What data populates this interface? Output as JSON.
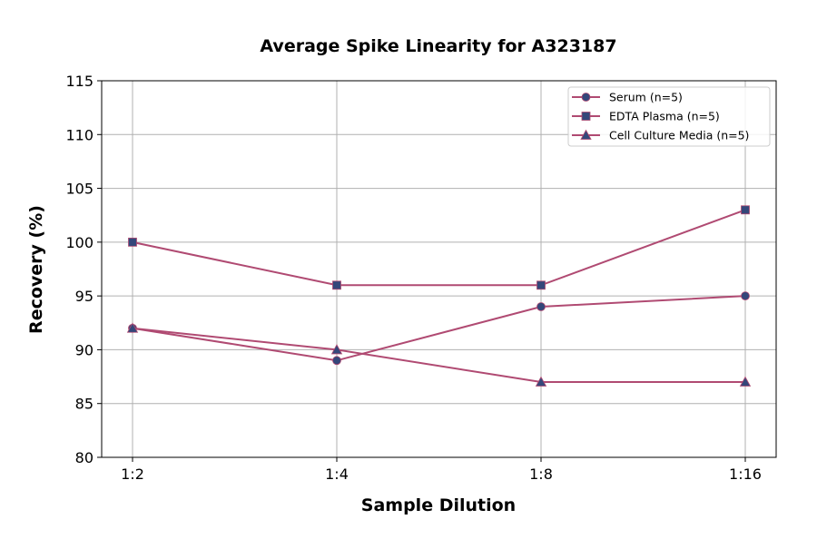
{
  "chart_data": {
    "type": "line",
    "title": "Average Spike Linearity for A323187",
    "xlabel": "Sample Dilution",
    "ylabel": "Recovery (%)",
    "categories": [
      "1:2",
      "1:4",
      "1:8",
      "1:16"
    ],
    "ylim": [
      80,
      115
    ],
    "yticks": [
      80,
      85,
      90,
      95,
      100,
      105,
      110,
      115
    ],
    "grid": true,
    "legend_position": "top-right",
    "line_color": "#b04a72",
    "marker_color": "#34477a",
    "series": [
      {
        "name": "Serum (n=5)",
        "marker": "circle",
        "values": [
          92,
          89,
          94,
          95
        ]
      },
      {
        "name": "EDTA Plasma (n=5)",
        "marker": "square",
        "values": [
          100,
          96,
          96,
          103
        ]
      },
      {
        "name": "Cell Culture Media (n=5)",
        "marker": "triangle",
        "values": [
          92,
          90,
          87,
          87
        ]
      }
    ]
  }
}
